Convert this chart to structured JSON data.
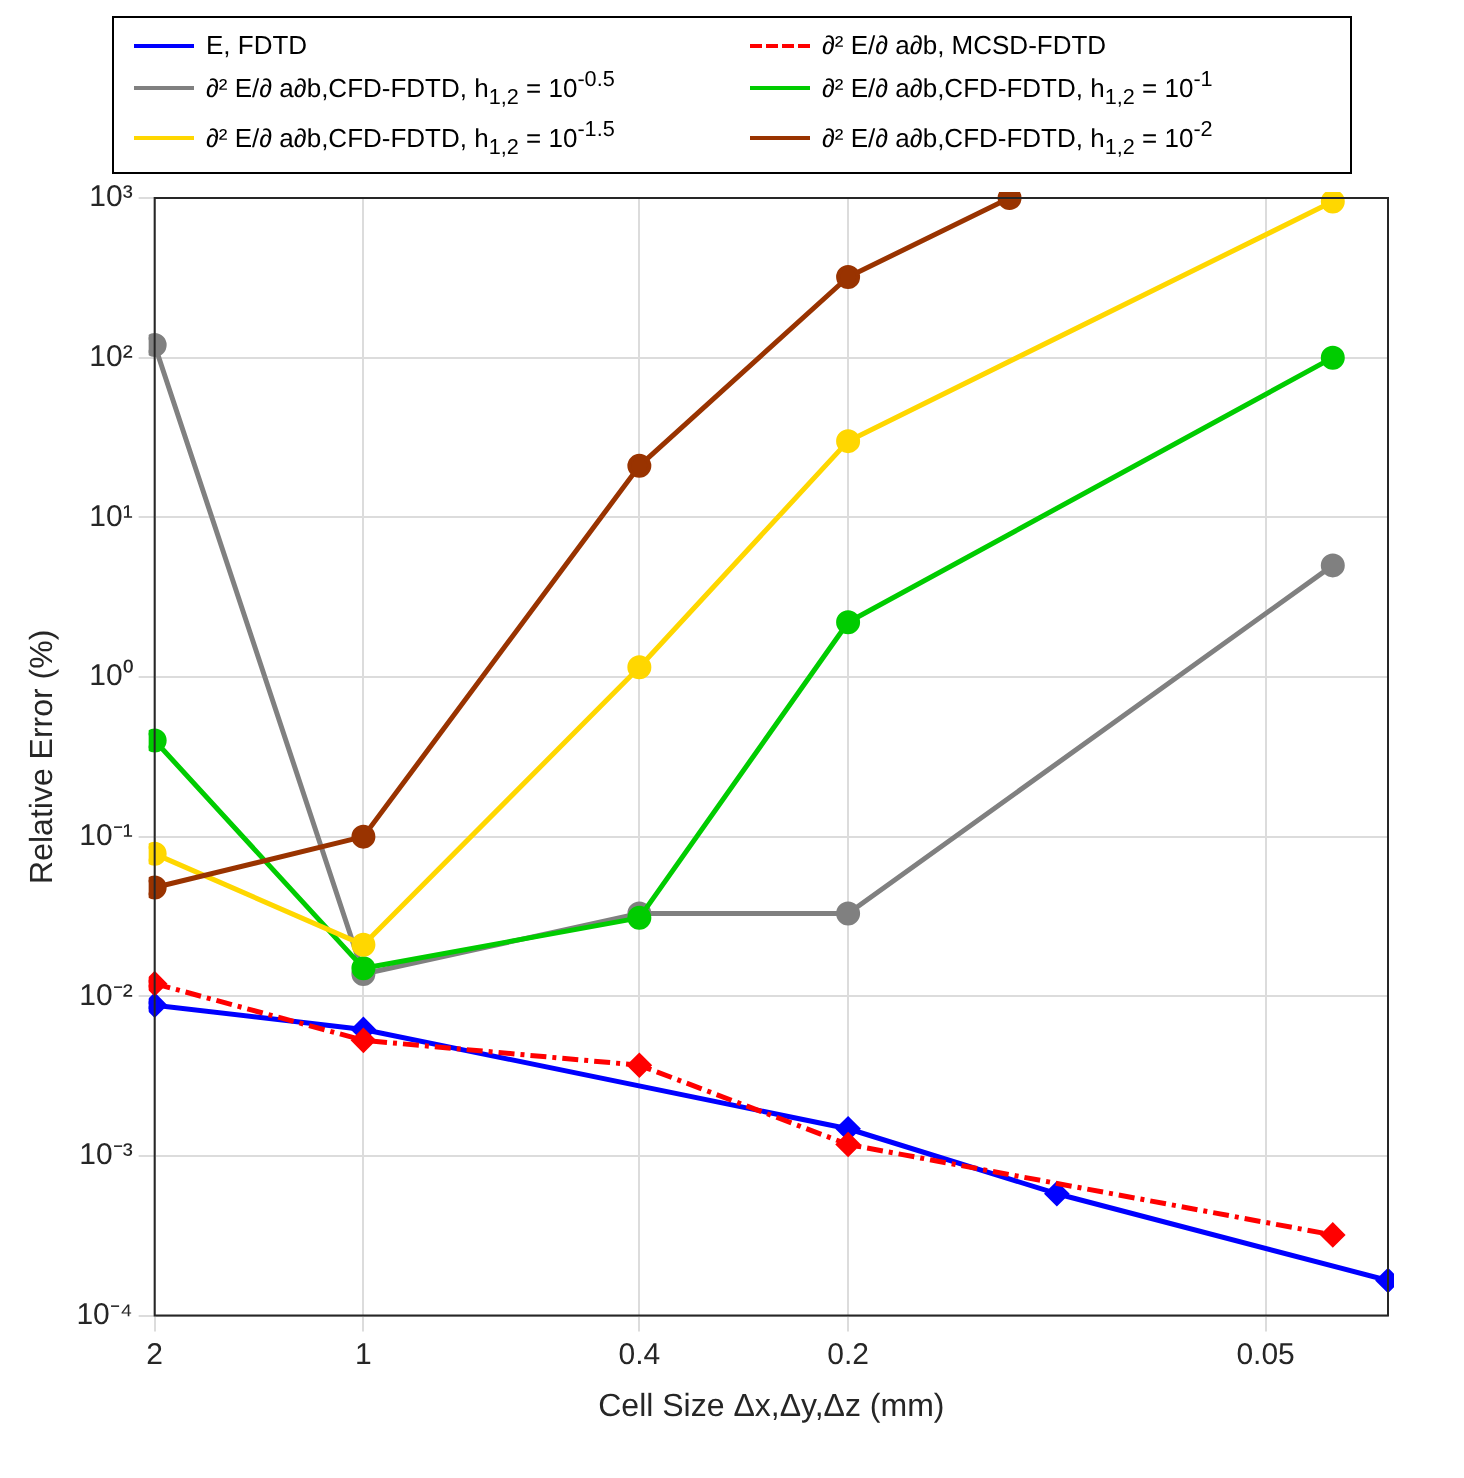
{
  "chart_data": {
    "type": "line",
    "xlabel": "Cell Size Δx,Δy,Δz (mm)",
    "ylabel": "Relative Error (%)",
    "log": "xy",
    "grid": true,
    "legend": "top",
    "xlim": [
      2,
      0.0333
    ],
    "xticks": [
      2,
      1,
      0.4,
      0.2,
      0.05
    ],
    "ylim": [
      0.0001,
      1000
    ],
    "yticks": [
      {
        "value": 0.0001,
        "label": "10⁻⁴"
      },
      {
        "value": 0.001,
        "label": "10⁻³"
      },
      {
        "value": 0.01,
        "label": "10⁻²"
      },
      {
        "value": 0.1,
        "label": "10⁻¹"
      },
      {
        "value": 1,
        "label": "10⁰"
      },
      {
        "value": 10,
        "label": "10¹"
      },
      {
        "value": 100,
        "label": "10²"
      },
      {
        "value": 1000,
        "label": "10³"
      }
    ],
    "series": [
      {
        "name": "E, FDTD",
        "color": "#0000ff",
        "marker": "diamond",
        "line_style": "solid",
        "x": [
          2,
          1,
          0.2,
          0.1,
          0.0333
        ],
        "values": [
          0.0088,
          0.0062,
          0.00148,
          0.00058,
          0.000166
        ]
      },
      {
        "name": "∂² E/∂ a∂b, MCSD-FDTD",
        "color": "#ff0000",
        "marker": "diamond",
        "line_style": "dashed",
        "x": [
          2,
          1,
          0.4,
          0.2,
          0.04
        ],
        "values": [
          0.012,
          0.0053,
          0.0037,
          0.00118,
          0.00032
        ]
      },
      {
        "name": "∂² E/∂ a∂b,CFD-FDTD, h$_{1,2}$ = 10$^{-0.5}$",
        "color": "#808080",
        "marker": "circle",
        "line_style": "solid",
        "x": [
          2,
          1,
          0.4,
          0.2,
          0.04
        ],
        "values": [
          120,
          0.0138,
          0.033,
          0.033,
          5
        ]
      },
      {
        "name": "∂² E/∂ a∂b,CFD-FDTD, h$_{1,2}$ = 10$^{-1}$",
        "color": "#00cc00",
        "marker": "circle",
        "line_style": "solid",
        "x": [
          2,
          1,
          0.4,
          0.2,
          0.04
        ],
        "values": [
          0.4,
          0.015,
          0.031,
          2.2,
          100
        ]
      },
      {
        "name": "∂² E/∂ a∂b,CFD-FDTD, h$_{1,2}$ = 10$^{-1.5}$",
        "color": "#ffd700",
        "marker": "circle",
        "line_style": "solid",
        "x": [
          2,
          1,
          0.4,
          0.2,
          0.04
        ],
        "values": [
          0.078,
          0.021,
          1.15,
          30,
          950
        ]
      },
      {
        "name": "∂² E/∂ a∂b,CFD-FDTD, h$_{1,2}$ = 10$^{-2}$",
        "color": "#993300",
        "marker": "circle",
        "line_style": "solid",
        "x": [
          2,
          1,
          0.4,
          0.2,
          0.117
        ],
        "values": [
          0.048,
          0.1,
          21,
          320,
          1000
        ]
      }
    ]
  }
}
